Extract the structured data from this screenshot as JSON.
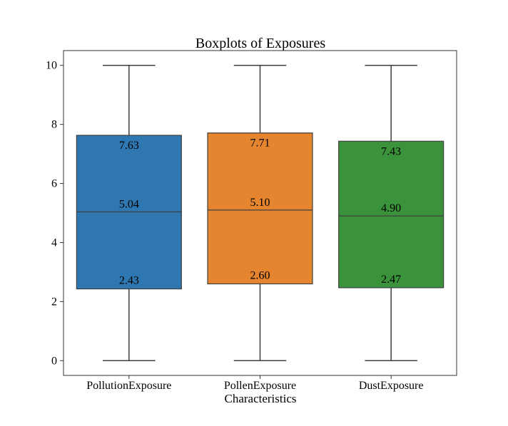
{
  "chart_data": {
    "type": "box",
    "title": "Boxplots of Exposures",
    "xlabel": "Characteristics",
    "ylabel": "",
    "ylim": [
      -0.5,
      10.5
    ],
    "yticks": [
      0,
      2,
      4,
      6,
      8,
      10
    ],
    "grid": false,
    "categories": [
      "PollutionExposure",
      "PollenExposure",
      "DustExposure"
    ],
    "boxes": [
      {
        "category": "PollutionExposure",
        "whisker_low": 0,
        "q1": 2.43,
        "median": 5.04,
        "q3": 7.63,
        "whisker_high": 10,
        "color": "#2f77b0",
        "labels": {
          "q1": "2.43",
          "median": "5.04",
          "q3": "7.63"
        }
      },
      {
        "category": "PollenExposure",
        "whisker_low": 0,
        "q1": 2.6,
        "median": 5.1,
        "q3": 7.71,
        "whisker_high": 10,
        "color": "#e5852f",
        "labels": {
          "q1": "2.60",
          "median": "5.10",
          "q3": "7.71"
        }
      },
      {
        "category": "DustExposure",
        "whisker_low": 0,
        "q1": 2.47,
        "median": 4.9,
        "q3": 7.43,
        "whisker_high": 10,
        "color": "#3a923a",
        "labels": {
          "q1": "2.47",
          "median": "4.90",
          "q3": "7.43"
        }
      }
    ]
  }
}
